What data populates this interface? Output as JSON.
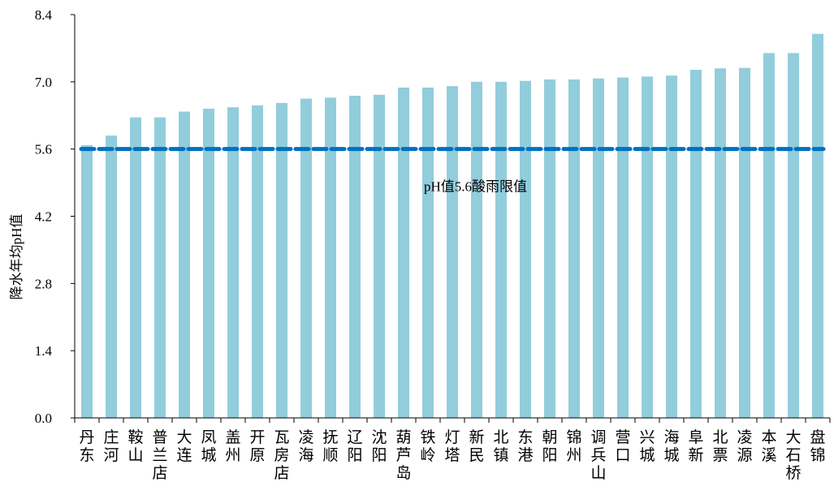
{
  "chart_data": {
    "type": "bar",
    "title": "",
    "xlabel": "",
    "ylabel": "降水年均pH值",
    "ylim": [
      0,
      8.4
    ],
    "yticks": [
      "0.0",
      "1.4",
      "2.8",
      "4.2",
      "5.6",
      "7.0",
      "8.4"
    ],
    "grid": false,
    "bar_color": "#92CDDC",
    "categories": [
      "丹东",
      "庄河",
      "鞍山",
      "普兰店",
      "大连",
      "凤城",
      "盖州",
      "开原",
      "瓦房店",
      "凌海",
      "抚顺",
      "辽阳",
      "沈阳",
      "葫芦岛",
      "铁岭",
      "灯塔",
      "新民",
      "北镇",
      "东港",
      "朝阳",
      "锦州",
      "调兵山",
      "营口",
      "兴城",
      "海城",
      "阜新",
      "北票",
      "凌源",
      "本溪",
      "大石桥",
      "盘锦"
    ],
    "values": [
      5.68,
      5.88,
      6.26,
      6.26,
      6.38,
      6.44,
      6.47,
      6.51,
      6.56,
      6.65,
      6.67,
      6.71,
      6.73,
      6.88,
      6.88,
      6.91,
      7.0,
      7.0,
      7.02,
      7.05,
      7.05,
      7.07,
      7.09,
      7.11,
      7.13,
      7.25,
      7.28,
      7.29,
      7.6,
      7.6,
      8.0
    ],
    "reference_line": {
      "value": 5.6,
      "label": "pH值5.6酸雨限值",
      "color": "#0070C0",
      "style": "dashed"
    }
  }
}
